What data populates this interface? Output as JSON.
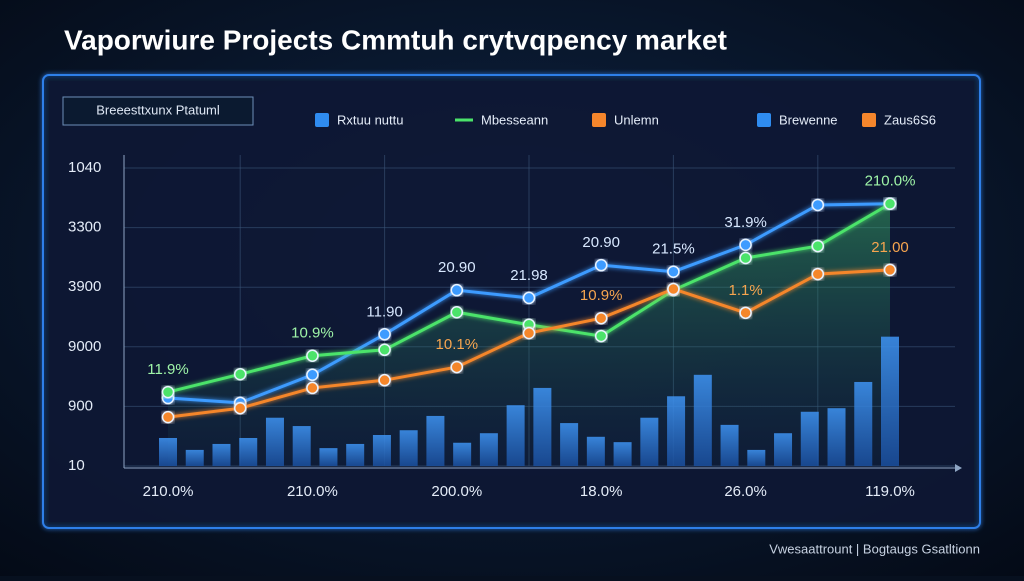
{
  "title": "Vaporwiure Projects Cmmtuh crytvqpency market",
  "subtitle": "Breeesttxunx Ptatuml",
  "footer": "Vwesaattrount | Bogtaugs Gsatltionn",
  "legend": [
    {
      "label": "Rxtuu nuttu",
      "color": "#2f8cf0",
      "shape": "square"
    },
    {
      "label": "Mbesseann",
      "color": "#4be36a",
      "shape": "line"
    },
    {
      "label": "Unlemn",
      "color": "#f5862c",
      "shape": "square"
    },
    {
      "label": "Brewenne",
      "color": "#2f8cf0",
      "shape": "square"
    },
    {
      "label": "Zaus6S6",
      "color": "#f5862c",
      "shape": "square"
    }
  ],
  "chart_data": [
    {
      "type": "line",
      "categories": [
        "210.0%",
        null,
        "210.0%",
        null,
        "200.0%",
        null,
        "18.0%",
        null,
        "26.0%",
        null,
        "119.0%"
      ],
      "ylim": [
        0,
        5
      ],
      "yticks": [
        {
          "value": 0,
          "label": "10"
        },
        {
          "value": 1,
          "label": "900"
        },
        {
          "value": 2,
          "label": "9000"
        },
        {
          "value": 3,
          "label": "3900"
        },
        {
          "value": 4,
          "label": "3300"
        },
        {
          "value": 5,
          "label": "1040"
        }
      ],
      "grid": true,
      "series": [
        {
          "color": "#3d9bff",
          "values": [
            1.14,
            1.06,
            1.53,
            2.21,
            2.95,
            2.82,
            3.37,
            3.26,
            3.71,
            4.38,
            4.4
          ],
          "value_labels": [
            null,
            null,
            null,
            "11.90",
            "20.90",
            "21.98",
            "20.90",
            "21.5%",
            "31.9%",
            null,
            null
          ],
          "label_color": "#d8e8ff"
        },
        {
          "color": "#4be36a",
          "values": [
            1.24,
            1.54,
            1.85,
            1.95,
            2.58,
            2.37,
            2.18,
            2.95,
            3.49,
            3.69,
            4.4
          ],
          "area": true,
          "value_labels": [
            "11.9%",
            null,
            "10.9%",
            null,
            null,
            null,
            null,
            null,
            null,
            null,
            "210.0%"
          ],
          "label_color": "#9ff5a8"
        },
        {
          "color": "#f5862c",
          "values": [
            0.82,
            0.97,
            1.31,
            1.44,
            1.66,
            2.23,
            2.48,
            2.97,
            2.57,
            3.22,
            3.29
          ],
          "value_labels": [
            null,
            null,
            null,
            null,
            "10.1%",
            null,
            "10.9%",
            null,
            "1.1%",
            null,
            "21.00"
          ],
          "label_color": "#f7a54f"
        }
      ]
    },
    {
      "type": "bar",
      "categories": [
        null,
        null,
        null,
        null,
        null,
        null,
        null,
        null,
        null,
        null,
        null,
        null,
        null,
        null,
        null,
        null,
        null,
        null,
        null,
        null,
        null,
        null,
        null,
        null,
        null,
        null,
        null,
        null
      ],
      "ylim": [
        0,
        5
      ],
      "color": "#2f7fe0",
      "values": [
        0.47,
        0.27,
        0.37,
        0.47,
        0.81,
        0.67,
        0.3,
        0.37,
        0.52,
        0.6,
        0.84,
        0.39,
        0.55,
        1.02,
        1.31,
        0.72,
        0.49,
        0.4,
        0.81,
        1.17,
        1.53,
        0.69,
        0.27,
        0.55,
        0.91,
        0.97,
        1.41,
        2.17
      ]
    }
  ]
}
